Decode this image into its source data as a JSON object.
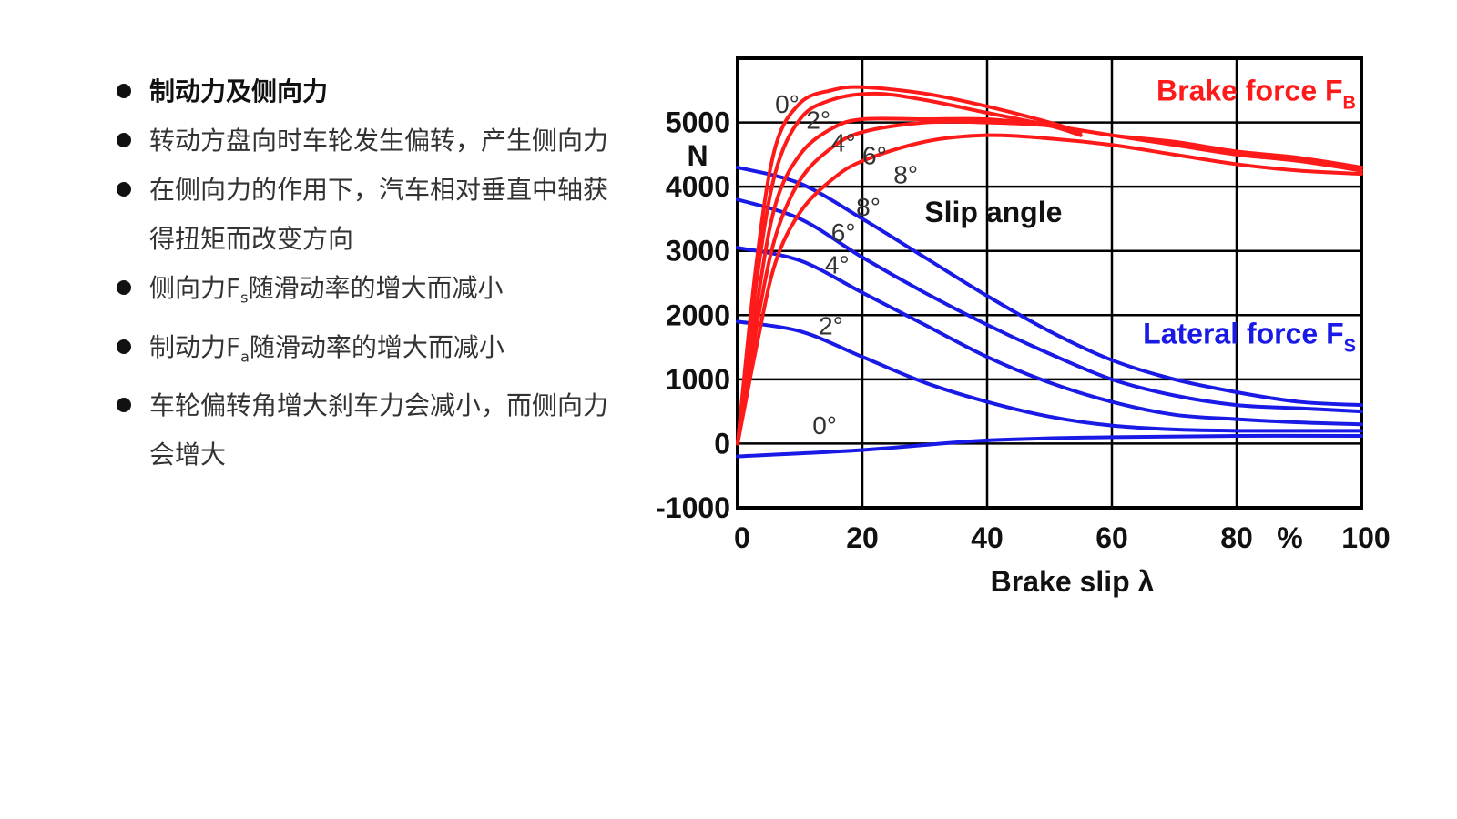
{
  "bullets": [
    {
      "text": "制动力及侧向力",
      "bold": true
    },
    {
      "text": "转动方盘向时车轮发生偏转，产生侧向力",
      "bold": false
    },
    {
      "text": "在侧向力的作用下，汽车相对垂直中轴获得扭矩而改变方向",
      "bold": false
    },
    {
      "pre": "侧向力F",
      "sub": "s",
      "post": "随滑动率的增大而减小",
      "bold": false
    },
    {
      "pre": "制动力F",
      "sub": "a",
      "post": "随滑动率的增大而减小",
      "bold": false
    },
    {
      "text": "车轮偏转角增大刹车力会减小，而侧向力会增大",
      "bold": false
    }
  ],
  "chart_data": {
    "type": "line",
    "xlabel": "Brake slip λ",
    "x_unit": "%",
    "y_unit": "N",
    "xlim": [
      0,
      100
    ],
    "ylim": [
      -1000,
      6000
    ],
    "x_ticks": [
      0,
      20,
      40,
      60,
      80,
      100
    ],
    "y_ticks": [
      -1000,
      0,
      1000,
      2000,
      3000,
      4000,
      5000
    ],
    "grid": true,
    "annotations": {
      "brake": {
        "pre": "Brake force F",
        "sub": "B"
      },
      "lateral": {
        "pre": "Lateral force F",
        "sub": "S"
      },
      "slip_angle": "Slip angle"
    },
    "colors": {
      "brake": "#ff1a1a",
      "lateral": "#1a1ae6",
      "grid": "#000000"
    },
    "brake_series": [
      {
        "label": "0°",
        "points": [
          [
            0,
            0
          ],
          [
            3,
            2800
          ],
          [
            6,
            4600
          ],
          [
            10,
            5300
          ],
          [
            15,
            5500
          ],
          [
            20,
            5550
          ],
          [
            30,
            5450
          ],
          [
            40,
            5250
          ],
          [
            50,
            5000
          ],
          [
            55,
            4850
          ]
        ]
      },
      {
        "label": "2°",
        "points": [
          [
            0,
            0
          ],
          [
            3,
            2500
          ],
          [
            6,
            4200
          ],
          [
            10,
            5050
          ],
          [
            15,
            5350
          ],
          [
            22,
            5450
          ],
          [
            30,
            5350
          ],
          [
            40,
            5150
          ],
          [
            50,
            4950
          ],
          [
            55,
            4800
          ]
        ]
      },
      {
        "label": "4°",
        "points": [
          [
            0,
            0
          ],
          [
            3,
            2100
          ],
          [
            6,
            3700
          ],
          [
            10,
            4500
          ],
          [
            15,
            4900
          ],
          [
            20,
            5050
          ],
          [
            30,
            5050
          ],
          [
            40,
            5050
          ],
          [
            50,
            4950
          ],
          [
            60,
            4800
          ],
          [
            70,
            4650
          ],
          [
            80,
            4500
          ],
          [
            90,
            4400
          ],
          [
            100,
            4250
          ]
        ]
      },
      {
        "label": "6°",
        "points": [
          [
            0,
            0
          ],
          [
            3,
            1800
          ],
          [
            6,
            3200
          ],
          [
            10,
            4100
          ],
          [
            15,
            4600
          ],
          [
            20,
            4850
          ],
          [
            30,
            5000
          ],
          [
            40,
            5000
          ],
          [
            50,
            4950
          ],
          [
            60,
            4800
          ],
          [
            70,
            4700
          ],
          [
            80,
            4550
          ],
          [
            90,
            4450
          ],
          [
            100,
            4300
          ]
        ]
      },
      {
        "label": "8°",
        "points": [
          [
            0,
            0
          ],
          [
            3,
            1500
          ],
          [
            6,
            2800
          ],
          [
            10,
            3600
          ],
          [
            15,
            4100
          ],
          [
            20,
            4400
          ],
          [
            30,
            4700
          ],
          [
            40,
            4800
          ],
          [
            50,
            4750
          ],
          [
            60,
            4650
          ],
          [
            70,
            4500
          ],
          [
            80,
            4350
          ],
          [
            90,
            4250
          ],
          [
            100,
            4200
          ]
        ]
      }
    ],
    "lateral_series": [
      {
        "label": "8°",
        "points": [
          [
            0,
            4300
          ],
          [
            10,
            4050
          ],
          [
            20,
            3500
          ],
          [
            30,
            2900
          ],
          [
            40,
            2300
          ],
          [
            50,
            1750
          ],
          [
            60,
            1300
          ],
          [
            70,
            1000
          ],
          [
            80,
            800
          ],
          [
            90,
            650
          ],
          [
            100,
            600
          ]
        ]
      },
      {
        "label": "6°",
        "points": [
          [
            0,
            3800
          ],
          [
            10,
            3500
          ],
          [
            20,
            2900
          ],
          [
            30,
            2350
          ],
          [
            40,
            1850
          ],
          [
            50,
            1400
          ],
          [
            60,
            1000
          ],
          [
            70,
            750
          ],
          [
            80,
            600
          ],
          [
            90,
            550
          ],
          [
            100,
            500
          ]
        ]
      },
      {
        "label": "4°",
        "points": [
          [
            0,
            3050
          ],
          [
            10,
            2850
          ],
          [
            20,
            2350
          ],
          [
            30,
            1850
          ],
          [
            40,
            1350
          ],
          [
            50,
            950
          ],
          [
            60,
            650
          ],
          [
            70,
            450
          ],
          [
            80,
            380
          ],
          [
            90,
            330
          ],
          [
            100,
            300
          ]
        ]
      },
      {
        "label": "2°",
        "points": [
          [
            0,
            1900
          ],
          [
            10,
            1750
          ],
          [
            20,
            1350
          ],
          [
            30,
            950
          ],
          [
            40,
            650
          ],
          [
            50,
            420
          ],
          [
            60,
            280
          ],
          [
            70,
            220
          ],
          [
            80,
            200
          ],
          [
            90,
            200
          ],
          [
            100,
            200
          ]
        ]
      },
      {
        "label": "0°",
        "points": [
          [
            0,
            -200
          ],
          [
            20,
            -100
          ],
          [
            40,
            50
          ],
          [
            60,
            100
          ],
          [
            80,
            120
          ],
          [
            100,
            120
          ]
        ]
      }
    ]
  }
}
